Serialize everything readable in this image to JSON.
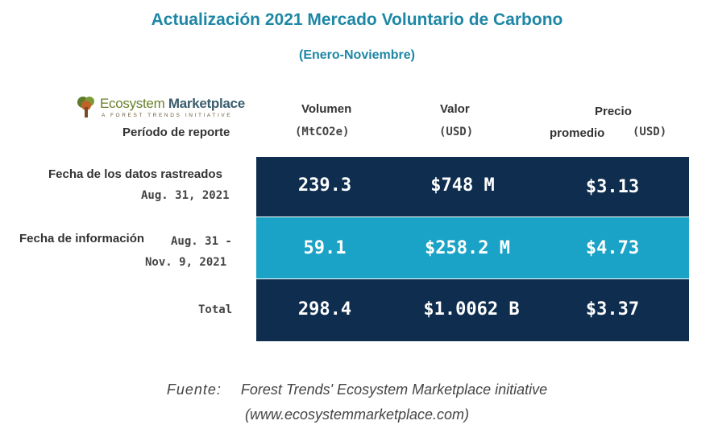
{
  "title": "Actualización 2021 Mercado Voluntario de Carbono",
  "subtitle": "(Enero-Noviembre)",
  "logo": {
    "name_part1": "Ecosystem",
    "name_part2": "Marketplace",
    "tagline": "A FOREST TRENDS INITIATIVE",
    "icon": "tree-logo-icon"
  },
  "table": {
    "corner_label": "Período de reporte",
    "columns": [
      {
        "line1": "Volumen",
        "line2": "(MtCO2e)"
      },
      {
        "line1": "Valor",
        "line2": "(USD)"
      },
      {
        "line1": "Precio",
        "line2a": "promedio",
        "line2b": "(USD)"
      }
    ],
    "rows": [
      {
        "label_line1": "Fecha de los datos rastreados",
        "label_line2": "Aug. 31, 2021",
        "color": "#0f2e4f"
      },
      {
        "label_line1": "Fecha de información",
        "label_line1b": "Aug. 31 -",
        "label_line2": "Nov. 9, 2021",
        "color": "#1aa3c6"
      },
      {
        "label_line1": "Total",
        "color": "#0f2e4f"
      }
    ]
  },
  "chart_data": {
    "type": "table",
    "title": "Actualización 2021 Mercado Voluntario de Carbono",
    "subtitle": "(Enero-Noviembre)",
    "columns": [
      "Volumen (MtCO2e)",
      "Valor (USD)",
      "Precio promedio (USD)"
    ],
    "rows": [
      {
        "period": "Fecha de los datos rastreados Aug. 31, 2021",
        "values": [
          "239.3",
          "$748 M",
          "$3.13"
        ]
      },
      {
        "period": "Fecha de información Aug. 31 - Nov. 9, 2021",
        "values": [
          "59.1",
          "$258.2 M",
          "$4.73"
        ]
      },
      {
        "period": "Total",
        "values": [
          "298.4",
          "$1.0062 B",
          "$3.37"
        ]
      }
    ]
  },
  "source": {
    "prefix": "Fuente:",
    "line1": "Forest Trends' Ecosystem Marketplace initiative",
    "line2": "(www.ecosystemmarketplace.com)"
  }
}
